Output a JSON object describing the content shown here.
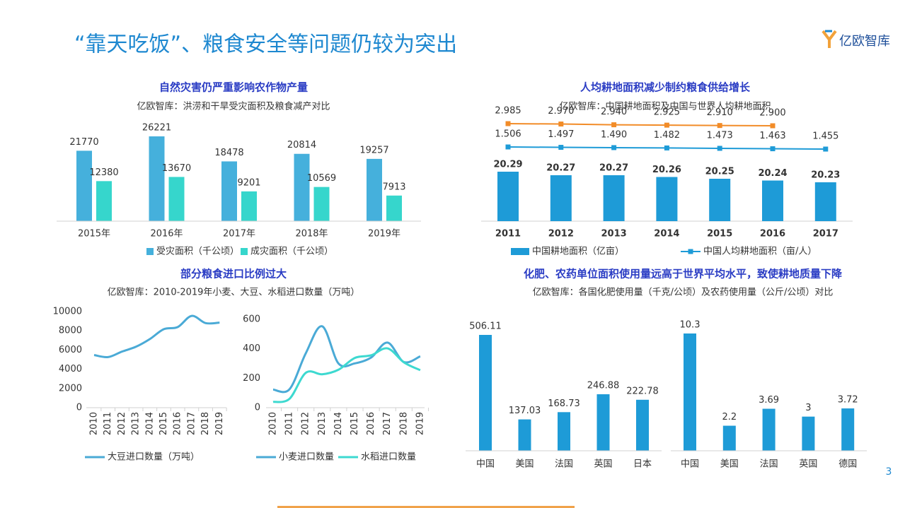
{
  "header": {
    "title": "“靠天吃饭”、粮食安全等问题仍较为突出",
    "logo": "亿欧智库"
  },
  "page_number": "3",
  "chart_data": [
    {
      "type": "bar",
      "title": "自然灾害仍严重影响农作物产量",
      "subtitle": "亿欧智库：洪涝和干旱受灾面积及粮食减产对比",
      "categories": [
        "2015年",
        "2016年",
        "2017年",
        "2018年",
        "2019年"
      ],
      "series": [
        {
          "name": "受灾面积（千公顷）",
          "color": "#45b0dc",
          "values": [
            21770,
            26221,
            18478,
            20814,
            19257
          ]
        },
        {
          "name": "成灾面积（千公顷）",
          "color": "#36d6cc",
          "values": [
            12380,
            13670,
            9201,
            10569,
            7913
          ]
        }
      ]
    },
    {
      "type": "combo",
      "title": "人均耕地面积减少制约粮食供给增长",
      "subtitle": "亿欧智库：中国耕地面积及中国与世界人均耕地面积",
      "categories": [
        "2011",
        "2012",
        "2013",
        "2014",
        "2015",
        "2016",
        "2017"
      ],
      "series": [
        {
          "name": "中国耕地面积（亿亩）",
          "color": "#1e9bd7",
          "type": "bar",
          "values": [
            20.29,
            20.27,
            20.27,
            20.26,
            20.25,
            20.24,
            20.23
          ]
        },
        {
          "name": "中国人均耕地面积（亩/人）",
          "color": "#1e9bd7",
          "type": "line",
          "values": [
            1.506,
            1.497,
            1.49,
            1.482,
            1.473,
            1.463,
            1.455
          ],
          "value_labels": [
            "1.506",
            "1.497",
            "1.490",
            "1.482",
            "1.473",
            "1.463",
            "1.455"
          ]
        },
        {
          "color": "#f28c28",
          "type": "line",
          "values": [
            2.985,
            2.97,
            2.94,
            2.925,
            2.91,
            2.9,
            null
          ],
          "value_labels": [
            "2.985",
            "2.970",
            "2.940",
            "2.925",
            "2.910",
            "2.900",
            null
          ]
        }
      ]
    },
    {
      "type": "line",
      "title": "部分粮食进口比例过大",
      "subtitle": "亿欧智库：2010-2019年小麦、大豆、水稻进口数量（万吨）",
      "categories": [
        "2010",
        "2011",
        "2012",
        "2013",
        "2014",
        "2015",
        "2016",
        "2017",
        "2018",
        "2019"
      ],
      "series": [
        {
          "name": "大豆进口数量（万吨）",
          "color": "#4aaad6",
          "values": [
            5480,
            5264,
            5838,
            6338,
            7140,
            8169,
            8391,
            9553,
            8803,
            8851
          ]
        }
      ],
      "ylim": [
        0,
        10000
      ],
      "yticks": [
        0,
        2000,
        4000,
        6000,
        8000,
        10000
      ]
    },
    {
      "type": "line",
      "categories": [
        "2010",
        "2011",
        "2012",
        "2013",
        "2014",
        "2015",
        "2016",
        "2017",
        "2018",
        "2019"
      ],
      "series": [
        {
          "name": "小麦进口数量",
          "color": "#4aaad6",
          "values": [
            123,
            125,
            370,
            553,
            300,
            301,
            341,
            442,
            310,
            349
          ]
        },
        {
          "name": "水稻进口数量",
          "color": "#3dd9d0",
          "values": [
            39,
            60,
            237,
            227,
            258,
            338,
            356,
            403,
            308,
            255
          ]
        }
      ],
      "ylim": [
        0,
        600
      ],
      "yticks": [
        0,
        200,
        400,
        600
      ]
    },
    {
      "type": "bar",
      "title": "化肥、农药单位面积使用量远高于世界平均水平，致使耕地质量下降",
      "subtitle": "亿欧智库：各国化肥使用量（千克/公顷）及农药使用量（公斤/公顷）对比",
      "categories": [
        "中国",
        "美国",
        "法国",
        "英国",
        "日本"
      ],
      "color": "#1e9bd7",
      "values": [
        506.11,
        137.03,
        168.73,
        246.88,
        222.78
      ]
    },
    {
      "type": "bar",
      "categories": [
        "中国",
        "美国",
        "法国",
        "英国",
        "德国"
      ],
      "color": "#1e9bd7",
      "values": [
        10.3,
        2.2,
        3.69,
        3,
        3.72
      ]
    }
  ]
}
